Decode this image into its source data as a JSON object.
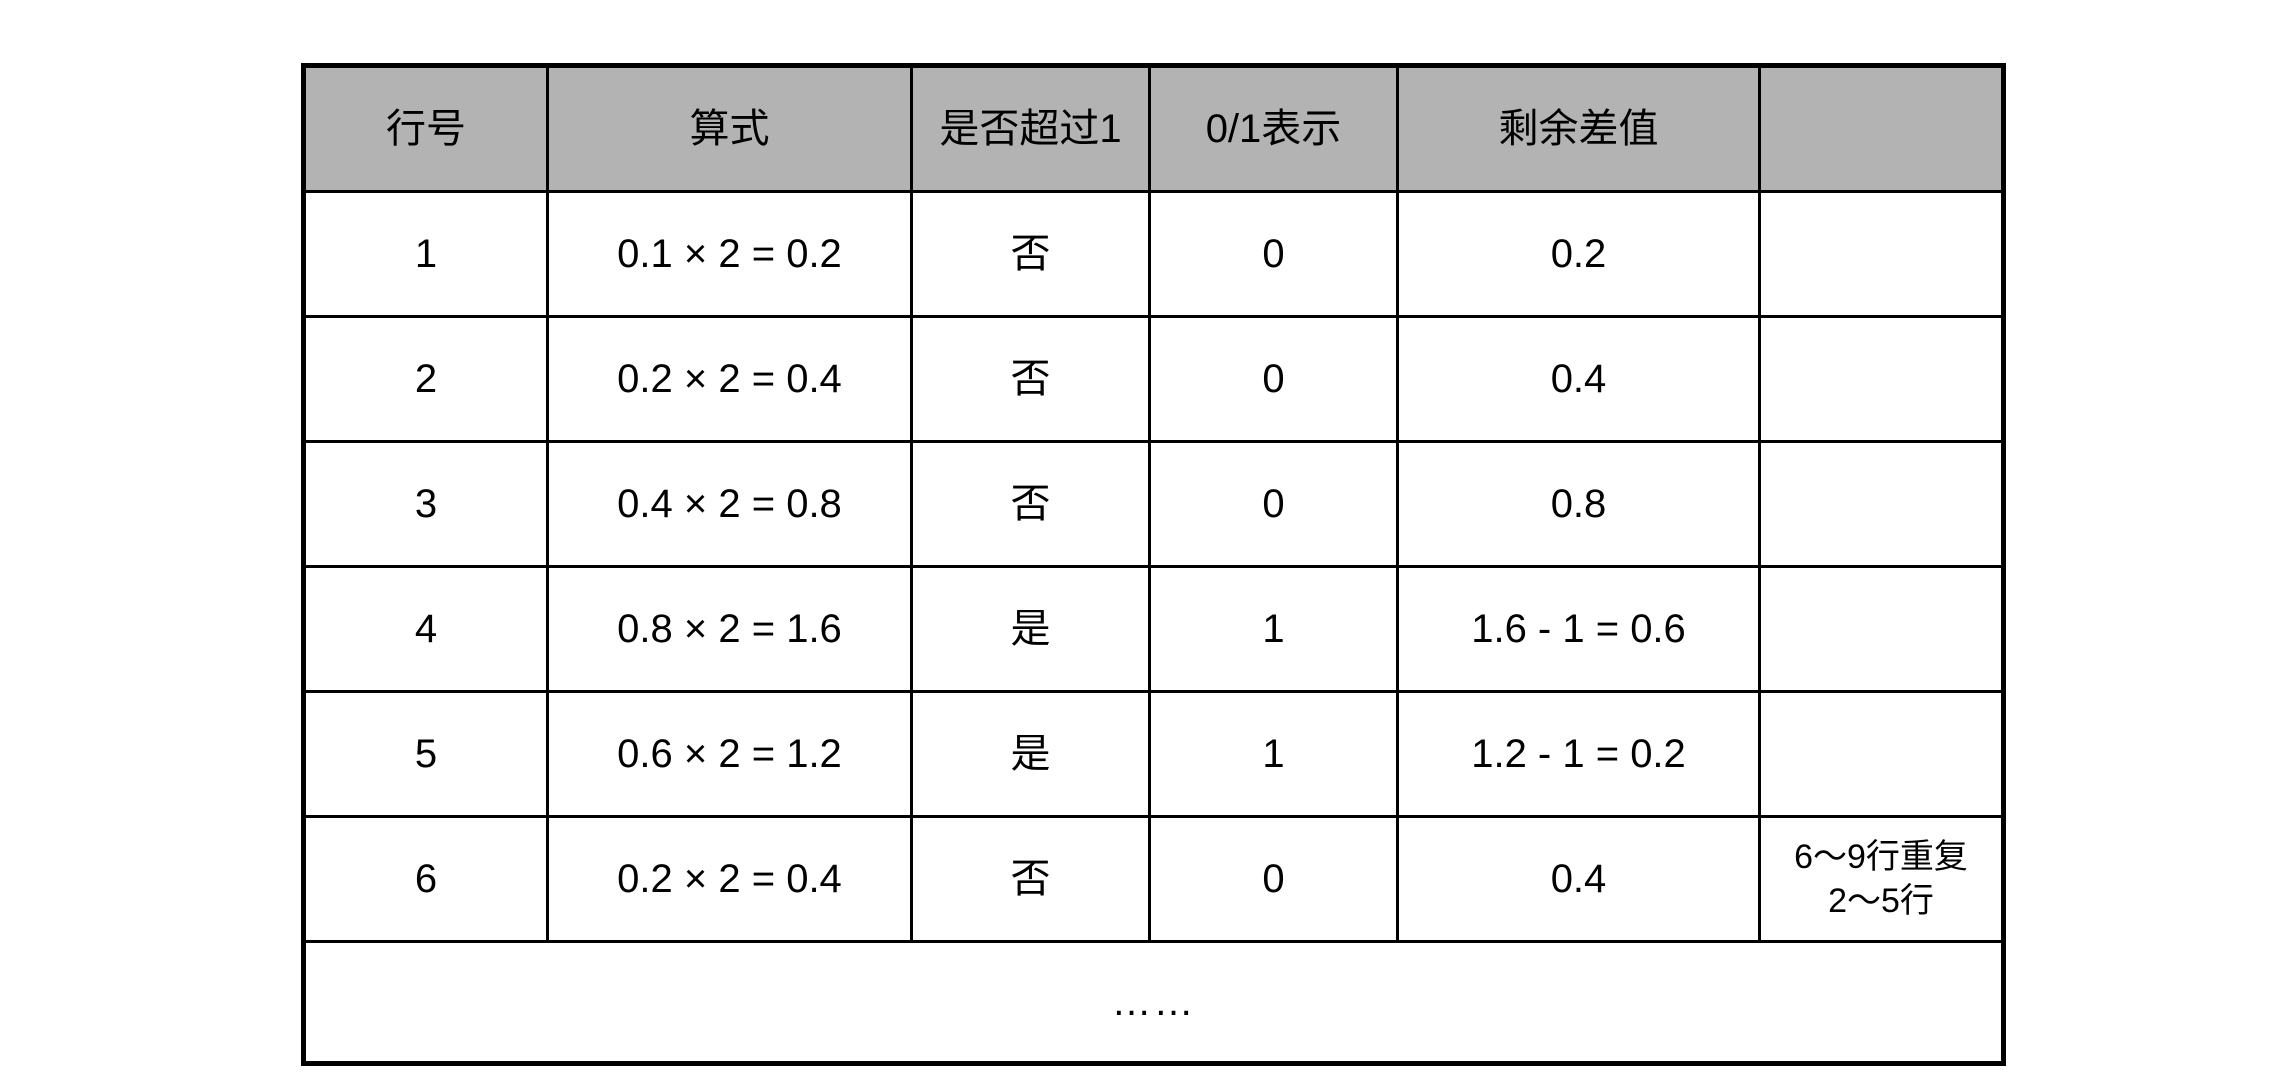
{
  "table": {
    "headers": [
      "行号",
      "算式",
      "是否超过1",
      "0/1表示",
      "剩余差值",
      ""
    ],
    "rows": [
      {
        "row_no": "1",
        "formula": "0.1 × 2 = 0.2",
        "exceeds_one": "否",
        "bit": "0",
        "remainder": "0.2",
        "note": ""
      },
      {
        "row_no": "2",
        "formula": "0.2 × 2 = 0.4",
        "exceeds_one": "否",
        "bit": "0",
        "remainder": "0.4",
        "note": ""
      },
      {
        "row_no": "3",
        "formula": "0.4 × 2 = 0.8",
        "exceeds_one": "否",
        "bit": "0",
        "remainder": "0.8",
        "note": ""
      },
      {
        "row_no": "4",
        "formula": "0.8 × 2 = 1.6",
        "exceeds_one": "是",
        "bit": "1",
        "remainder": "1.6 - 1 = 0.6",
        "note": ""
      },
      {
        "row_no": "5",
        "formula": "0.6 × 2 = 1.2",
        "exceeds_one": "是",
        "bit": "1",
        "remainder": "1.2 - 1 = 0.2",
        "note": ""
      },
      {
        "row_no": "6",
        "formula": "0.2 × 2 = 0.4",
        "exceeds_one": "否",
        "bit": "0",
        "remainder": "0.4",
        "note": "6～9行重复\n2～5行"
      }
    ],
    "ellipsis_row": "……",
    "colors": {
      "header_bg": "#b3b3b3",
      "border": "#000000",
      "background": "#ffffff"
    }
  }
}
